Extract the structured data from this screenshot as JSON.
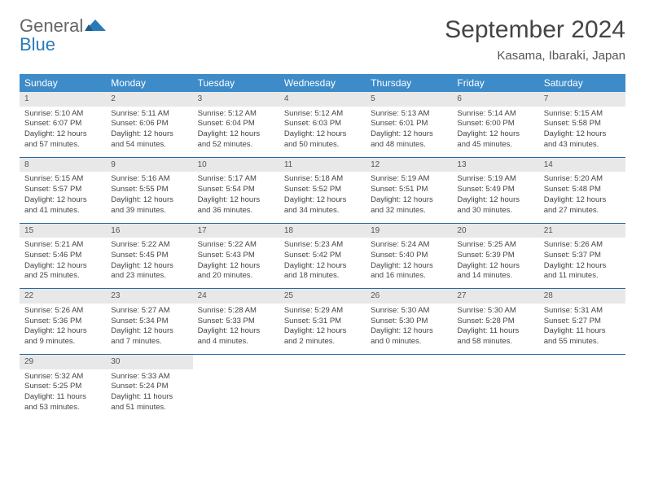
{
  "logo": {
    "line1": "General",
    "line2": "Blue"
  },
  "title": "September 2024",
  "location": "Kasama, Ibaraki, Japan",
  "colors": {
    "header_bg": "#3d8bc8",
    "header_text": "#ffffff",
    "daynum_bg": "#e8e8e8",
    "row_border": "#2a6aa0",
    "body_text": "#444444",
    "logo_gray": "#6a6a6a",
    "logo_blue": "#2a7ab8"
  },
  "weekdays": [
    "Sunday",
    "Monday",
    "Tuesday",
    "Wednesday",
    "Thursday",
    "Friday",
    "Saturday"
  ],
  "weeks": [
    [
      {
        "n": "1",
        "sunrise": "Sunrise: 5:10 AM",
        "sunset": "Sunset: 6:07 PM",
        "daylight": "Daylight: 12 hours and 57 minutes."
      },
      {
        "n": "2",
        "sunrise": "Sunrise: 5:11 AM",
        "sunset": "Sunset: 6:06 PM",
        "daylight": "Daylight: 12 hours and 54 minutes."
      },
      {
        "n": "3",
        "sunrise": "Sunrise: 5:12 AM",
        "sunset": "Sunset: 6:04 PM",
        "daylight": "Daylight: 12 hours and 52 minutes."
      },
      {
        "n": "4",
        "sunrise": "Sunrise: 5:12 AM",
        "sunset": "Sunset: 6:03 PM",
        "daylight": "Daylight: 12 hours and 50 minutes."
      },
      {
        "n": "5",
        "sunrise": "Sunrise: 5:13 AM",
        "sunset": "Sunset: 6:01 PM",
        "daylight": "Daylight: 12 hours and 48 minutes."
      },
      {
        "n": "6",
        "sunrise": "Sunrise: 5:14 AM",
        "sunset": "Sunset: 6:00 PM",
        "daylight": "Daylight: 12 hours and 45 minutes."
      },
      {
        "n": "7",
        "sunrise": "Sunrise: 5:15 AM",
        "sunset": "Sunset: 5:58 PM",
        "daylight": "Daylight: 12 hours and 43 minutes."
      }
    ],
    [
      {
        "n": "8",
        "sunrise": "Sunrise: 5:15 AM",
        "sunset": "Sunset: 5:57 PM",
        "daylight": "Daylight: 12 hours and 41 minutes."
      },
      {
        "n": "9",
        "sunrise": "Sunrise: 5:16 AM",
        "sunset": "Sunset: 5:55 PM",
        "daylight": "Daylight: 12 hours and 39 minutes."
      },
      {
        "n": "10",
        "sunrise": "Sunrise: 5:17 AM",
        "sunset": "Sunset: 5:54 PM",
        "daylight": "Daylight: 12 hours and 36 minutes."
      },
      {
        "n": "11",
        "sunrise": "Sunrise: 5:18 AM",
        "sunset": "Sunset: 5:52 PM",
        "daylight": "Daylight: 12 hours and 34 minutes."
      },
      {
        "n": "12",
        "sunrise": "Sunrise: 5:19 AM",
        "sunset": "Sunset: 5:51 PM",
        "daylight": "Daylight: 12 hours and 32 minutes."
      },
      {
        "n": "13",
        "sunrise": "Sunrise: 5:19 AM",
        "sunset": "Sunset: 5:49 PM",
        "daylight": "Daylight: 12 hours and 30 minutes."
      },
      {
        "n": "14",
        "sunrise": "Sunrise: 5:20 AM",
        "sunset": "Sunset: 5:48 PM",
        "daylight": "Daylight: 12 hours and 27 minutes."
      }
    ],
    [
      {
        "n": "15",
        "sunrise": "Sunrise: 5:21 AM",
        "sunset": "Sunset: 5:46 PM",
        "daylight": "Daylight: 12 hours and 25 minutes."
      },
      {
        "n": "16",
        "sunrise": "Sunrise: 5:22 AM",
        "sunset": "Sunset: 5:45 PM",
        "daylight": "Daylight: 12 hours and 23 minutes."
      },
      {
        "n": "17",
        "sunrise": "Sunrise: 5:22 AM",
        "sunset": "Sunset: 5:43 PM",
        "daylight": "Daylight: 12 hours and 20 minutes."
      },
      {
        "n": "18",
        "sunrise": "Sunrise: 5:23 AM",
        "sunset": "Sunset: 5:42 PM",
        "daylight": "Daylight: 12 hours and 18 minutes."
      },
      {
        "n": "19",
        "sunrise": "Sunrise: 5:24 AM",
        "sunset": "Sunset: 5:40 PM",
        "daylight": "Daylight: 12 hours and 16 minutes."
      },
      {
        "n": "20",
        "sunrise": "Sunrise: 5:25 AM",
        "sunset": "Sunset: 5:39 PM",
        "daylight": "Daylight: 12 hours and 14 minutes."
      },
      {
        "n": "21",
        "sunrise": "Sunrise: 5:26 AM",
        "sunset": "Sunset: 5:37 PM",
        "daylight": "Daylight: 12 hours and 11 minutes."
      }
    ],
    [
      {
        "n": "22",
        "sunrise": "Sunrise: 5:26 AM",
        "sunset": "Sunset: 5:36 PM",
        "daylight": "Daylight: 12 hours and 9 minutes."
      },
      {
        "n": "23",
        "sunrise": "Sunrise: 5:27 AM",
        "sunset": "Sunset: 5:34 PM",
        "daylight": "Daylight: 12 hours and 7 minutes."
      },
      {
        "n": "24",
        "sunrise": "Sunrise: 5:28 AM",
        "sunset": "Sunset: 5:33 PM",
        "daylight": "Daylight: 12 hours and 4 minutes."
      },
      {
        "n": "25",
        "sunrise": "Sunrise: 5:29 AM",
        "sunset": "Sunset: 5:31 PM",
        "daylight": "Daylight: 12 hours and 2 minutes."
      },
      {
        "n": "26",
        "sunrise": "Sunrise: 5:30 AM",
        "sunset": "Sunset: 5:30 PM",
        "daylight": "Daylight: 12 hours and 0 minutes."
      },
      {
        "n": "27",
        "sunrise": "Sunrise: 5:30 AM",
        "sunset": "Sunset: 5:28 PM",
        "daylight": "Daylight: 11 hours and 58 minutes."
      },
      {
        "n": "28",
        "sunrise": "Sunrise: 5:31 AM",
        "sunset": "Sunset: 5:27 PM",
        "daylight": "Daylight: 11 hours and 55 minutes."
      }
    ],
    [
      {
        "n": "29",
        "sunrise": "Sunrise: 5:32 AM",
        "sunset": "Sunset: 5:25 PM",
        "daylight": "Daylight: 11 hours and 53 minutes."
      },
      {
        "n": "30",
        "sunrise": "Sunrise: 5:33 AM",
        "sunset": "Sunset: 5:24 PM",
        "daylight": "Daylight: 11 hours and 51 minutes."
      },
      {
        "empty": true
      },
      {
        "empty": true
      },
      {
        "empty": true
      },
      {
        "empty": true
      },
      {
        "empty": true
      }
    ]
  ]
}
